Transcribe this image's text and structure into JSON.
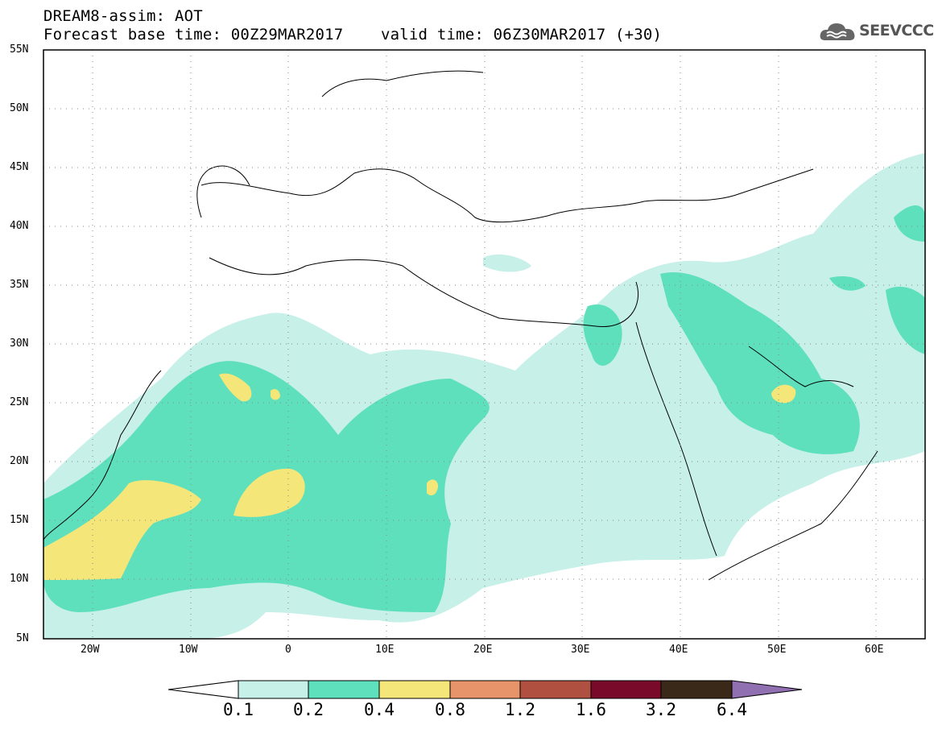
{
  "header": {
    "title_line1": "DREAM8-assim: AOT",
    "title_line2": "Forecast base time: 00Z29MAR2017    valid time: 06Z30MAR2017 (+30)"
  },
  "logo": {
    "text": "SEEVCCC",
    "icon": "cloud-icon"
  },
  "map": {
    "lat_labels": [
      "55N",
      "50N",
      "45N",
      "40N",
      "35N",
      "30N",
      "25N",
      "20N",
      "15N",
      "10N",
      "5N"
    ],
    "lon_labels": [
      "20W",
      "10W",
      "0",
      "10E",
      "20E",
      "30E",
      "40E",
      "50E",
      "60E"
    ],
    "grid": true,
    "grid_style": "dotted",
    "domain": {
      "lon": [
        -25,
        65
      ],
      "lat": [
        5,
        55
      ]
    }
  },
  "colorbar": {
    "colors": [
      "#c6f0e8",
      "#5fe0bc",
      "#f5e67a",
      "#e8946a",
      "#b05040",
      "#7a0a2a",
      "#3a2818",
      "#9070b0"
    ],
    "labels": [
      "0.1",
      "0.2",
      "0.4",
      "0.8",
      "1.2",
      "1.6",
      "3.2",
      "6.4"
    ]
  }
}
